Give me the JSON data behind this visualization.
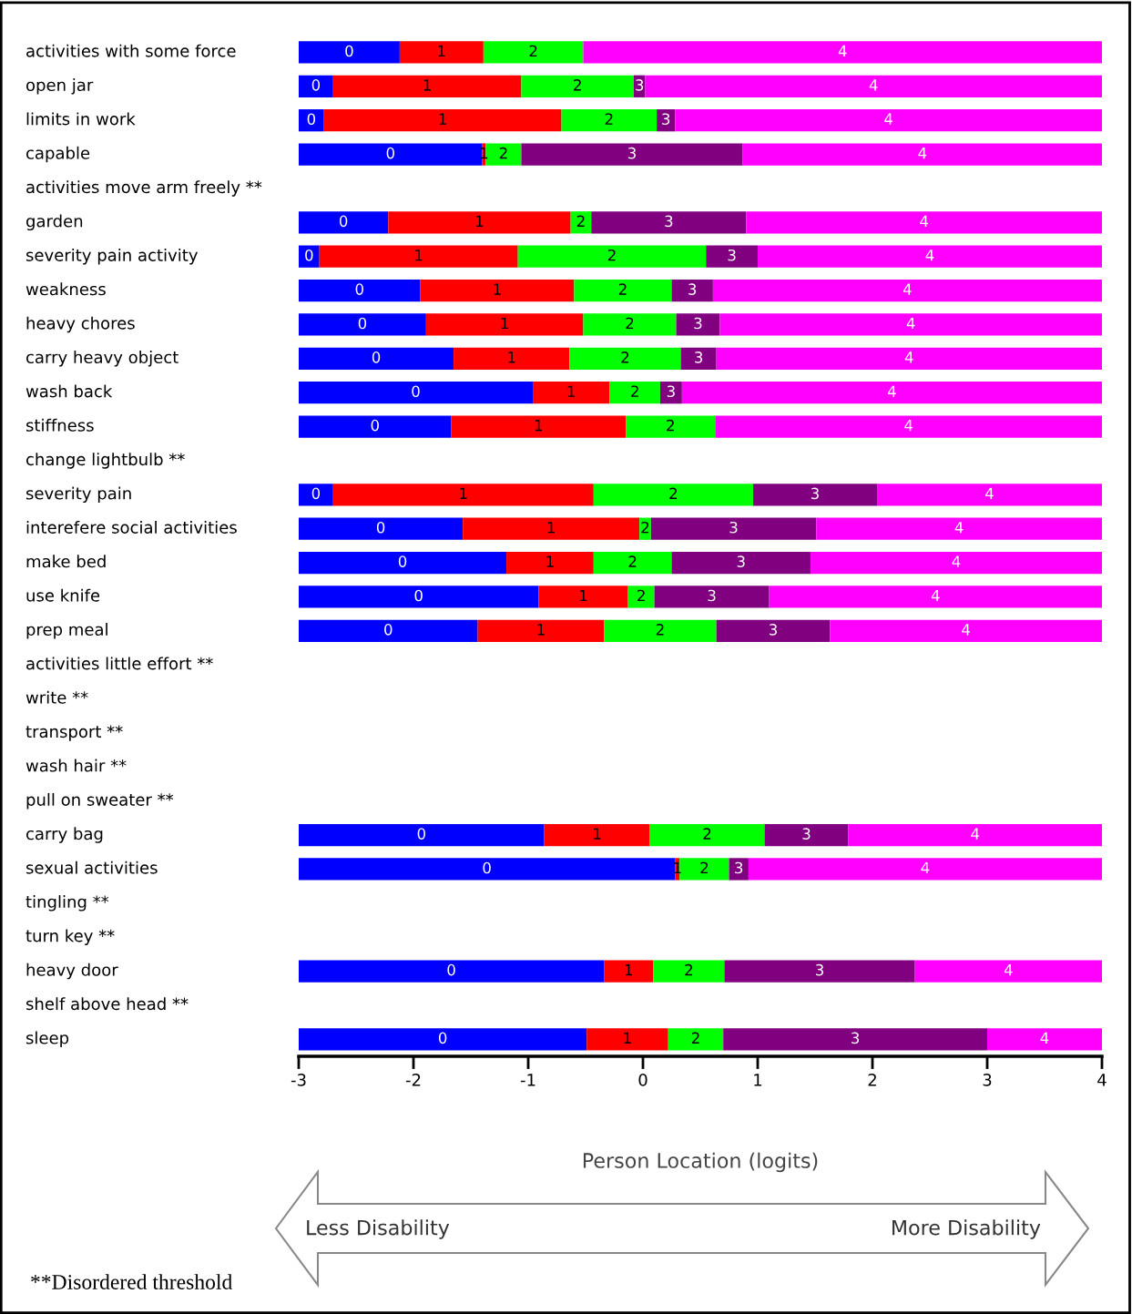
{
  "chart_data": {
    "type": "bar",
    "orientation": "horizontal",
    "xlabel": "Person Location (logits)",
    "xlim": [
      -3,
      4
    ],
    "xticks": [
      -3,
      -2,
      -1,
      0,
      1,
      2,
      3,
      4
    ],
    "grid": false,
    "categories": [
      "activities with some force",
      "open jar",
      "limits in work",
      "capable",
      "activities move arm freely **",
      "garden",
      "severity pain activity",
      "weakness",
      "heavy chores",
      "carry heavy object",
      "wash back",
      "stiffness",
      "change lightbulb **",
      "severity pain",
      "interefere social activities",
      "make bed",
      "use knife",
      "prep meal",
      "activities little effort **",
      "write **",
      "transport **",
      "wash hair **",
      "pull on sweater **",
      "carry bag",
      "sexual activities",
      "tingling **",
      "turn key **",
      "heavy door",
      "shelf above head **",
      "sleep"
    ],
    "series": [
      {
        "name": "0",
        "color": "#0000ff",
        "base": [
          -3,
          -3,
          -3,
          -3,
          null,
          -3,
          -3,
          -3,
          -3,
          -3,
          -3,
          -3,
          null,
          -3,
          -3,
          -3,
          -3,
          -3,
          null,
          null,
          null,
          null,
          null,
          -3,
          -3,
          null,
          null,
          -3,
          null,
          -3
        ],
        "values": [
          0.88,
          0.3,
          0.22,
          1.6,
          null,
          0.78,
          0.18,
          1.06,
          1.11,
          1.35,
          2.04,
          1.33,
          null,
          0.3,
          1.43,
          1.81,
          2.09,
          1.56,
          null,
          null,
          null,
          null,
          null,
          2.14,
          3.28,
          null,
          null,
          2.66,
          null,
          2.51
        ]
      },
      {
        "name": "1",
        "color": "#ff0000",
        "base": [
          -2.12,
          -2.7,
          -2.78,
          -1.4,
          null,
          -2.22,
          -2.82,
          -1.94,
          -1.89,
          -1.65,
          -0.96,
          -1.67,
          null,
          -2.7,
          -1.57,
          -1.19,
          -0.91,
          -1.44,
          null,
          null,
          null,
          null,
          null,
          -0.86,
          0.28,
          null,
          null,
          -0.34,
          null,
          -0.49
        ],
        "values": [
          0.73,
          1.64,
          2.07,
          0.03,
          null,
          1.59,
          1.73,
          1.34,
          1.37,
          1.01,
          0.67,
          1.52,
          null,
          2.27,
          1.54,
          0.76,
          0.78,
          1.1,
          null,
          null,
          null,
          null,
          null,
          0.92,
          0.04,
          null,
          null,
          0.43,
          null,
          0.71
        ]
      },
      {
        "name": "2",
        "color": "#00ff00",
        "base": [
          -1.39,
          -1.06,
          -0.71,
          -1.37,
          null,
          -0.63,
          -1.09,
          -0.6,
          -0.52,
          -0.64,
          -0.29,
          -0.15,
          null,
          -0.43,
          -0.03,
          -0.43,
          -0.13,
          -0.34,
          null,
          null,
          null,
          null,
          null,
          0.06,
          0.32,
          null,
          null,
          0.09,
          null,
          0.22
        ],
        "values": [
          0.87,
          0.98,
          0.83,
          0.31,
          null,
          0.18,
          1.64,
          0.85,
          0.81,
          0.97,
          0.44,
          0.78,
          null,
          1.39,
          0.1,
          0.68,
          0.23,
          0.98,
          null,
          null,
          null,
          null,
          null,
          1.0,
          0.43,
          null,
          null,
          0.62,
          null,
          0.48
        ]
      },
      {
        "name": "3",
        "color": "#800080",
        "base": [
          null,
          -0.08,
          0.12,
          -1.06,
          null,
          -0.45,
          0.55,
          0.25,
          0.29,
          0.33,
          0.15,
          null,
          null,
          0.96,
          0.07,
          0.25,
          0.1,
          0.64,
          null,
          null,
          null,
          null,
          null,
          1.06,
          0.75,
          null,
          null,
          0.71,
          null,
          0.7
        ],
        "values": [
          null,
          0.1,
          0.16,
          1.93,
          null,
          1.35,
          0.45,
          0.36,
          0.38,
          0.31,
          0.19,
          null,
          null,
          1.08,
          1.44,
          1.21,
          1.0,
          0.99,
          null,
          null,
          null,
          null,
          null,
          0.73,
          0.17,
          null,
          null,
          1.66,
          null,
          2.3
        ]
      },
      {
        "name": "4",
        "color": "#ff00ff",
        "base": [
          -0.52,
          0.02,
          0.28,
          0.87,
          null,
          0.9,
          1.0,
          0.61,
          0.67,
          0.64,
          0.34,
          0.63,
          null,
          2.04,
          1.51,
          1.46,
          1.1,
          1.63,
          null,
          null,
          null,
          null,
          null,
          1.79,
          0.92,
          null,
          null,
          2.37,
          null,
          3.0
        ],
        "values": [
          4.52,
          3.98,
          3.72,
          3.13,
          null,
          3.1,
          3.0,
          3.39,
          3.33,
          3.36,
          3.66,
          3.37,
          null,
          1.96,
          2.49,
          2.54,
          2.9,
          2.37,
          null,
          null,
          null,
          null,
          null,
          2.21,
          3.08,
          null,
          null,
          1.63,
          null,
          1.0
        ]
      }
    ],
    "annotations": [
      "Less Disability",
      "More Disability",
      "**Disordered threshold"
    ]
  }
}
